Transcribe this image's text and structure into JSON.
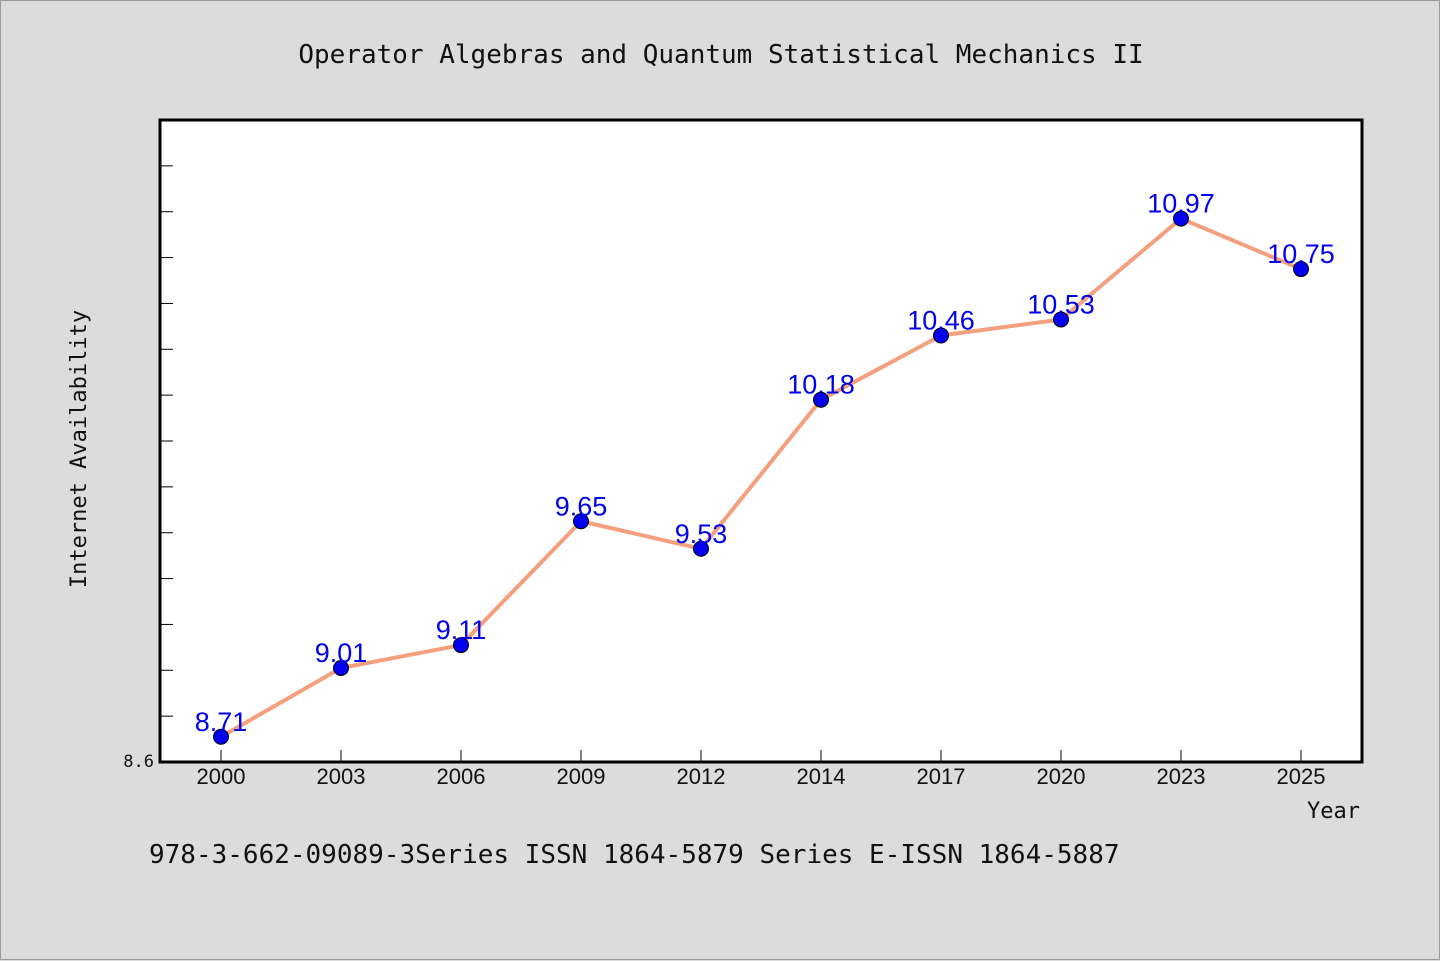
{
  "chart_data": {
    "type": "line",
    "title": "Operator Algebras and Quantum Statistical Mechanics II",
    "xlabel": "Year",
    "ylabel": "Internet Availability",
    "categories": [
      "2000",
      "2003",
      "2006",
      "2009",
      "2012",
      "2014",
      "2017",
      "2020",
      "2023",
      "2025"
    ],
    "values": [
      8.71,
      9.01,
      9.11,
      9.65,
      9.53,
      10.18,
      10.46,
      10.53,
      10.97,
      10.75
    ],
    "y_min_label": "8.6",
    "ylim": [
      8.6,
      11.4
    ],
    "grid": false,
    "colors": {
      "line": "#f4a07e",
      "marker": "#0000ee",
      "label": "#0000ee"
    },
    "footer": "978-3-662-09089-3Series ISSN 1864-5879 Series E-ISSN 1864-5887"
  }
}
